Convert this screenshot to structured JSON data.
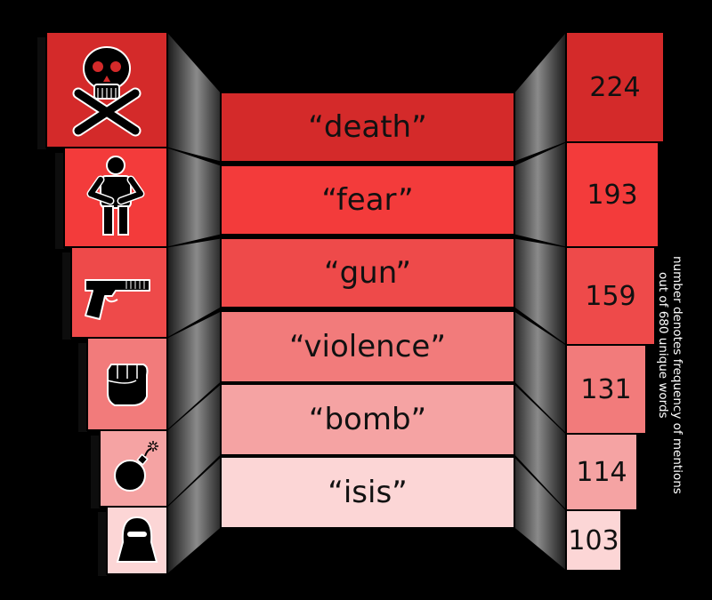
{
  "chart_data": {
    "type": "bar",
    "categories": [
      "“death”",
      "“fear”",
      "“gun”",
      "“violence”",
      "“bomb”",
      "“isis”"
    ],
    "values": [
      224,
      193,
      159,
      131,
      114,
      103
    ],
    "value_labels": [
      "224",
      "193",
      "159",
      "131",
      "114",
      "103"
    ],
    "icons": [
      "skull-crossbones-icon",
      "person-icon",
      "pistol-icon",
      "fist-icon",
      "bomb-icon",
      "masked-face-icon"
    ],
    "colors": [
      "#d42a2a",
      "#f33b3b",
      "#ee4a4a",
      "#f27b7b",
      "#f5a3a3",
      "#fcd6d6"
    ],
    "annotation_lines": [
      "number denotes frequency of mentions",
      "out of 680 unique words"
    ],
    "legend": false,
    "grid": false
  }
}
